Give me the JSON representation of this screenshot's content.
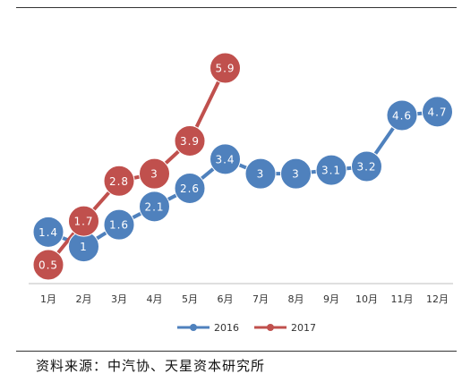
{
  "chart_data": {
    "type": "line",
    "categories": [
      "1月",
      "2月",
      "3月",
      "4月",
      "5月",
      "6月",
      "7月",
      "8月",
      "9月",
      "10月",
      "11月",
      "12月"
    ],
    "series": [
      {
        "name": "2016",
        "color": "#4f81bd",
        "values": [
          1.4,
          1,
          1.6,
          2.1,
          2.6,
          3.4,
          3,
          3,
          3.1,
          3.2,
          4.6,
          4.7
        ],
        "labels": [
          "1.4",
          "1",
          "1.6",
          "2.1",
          "2.6",
          "3.4",
          "3",
          "3",
          "3.1",
          "3.2",
          "4.6",
          "4.7"
        ]
      },
      {
        "name": "2017",
        "color": "#c0504d",
        "values": [
          0.5,
          1.7,
          2.8,
          3,
          3.9,
          5.9,
          null,
          null,
          null,
          null,
          null,
          null
        ],
        "labels": [
          "0.5",
          "1.7",
          "2.8",
          "3",
          "3.9",
          "5.9",
          "",
          "",
          "",
          "",
          "",
          ""
        ]
      }
    ],
    "ylim": [
      0.5,
      5.9
    ],
    "grid": false,
    "legend": "bottom"
  },
  "source_text": "资料来源：中汽协、天星资本研究所"
}
